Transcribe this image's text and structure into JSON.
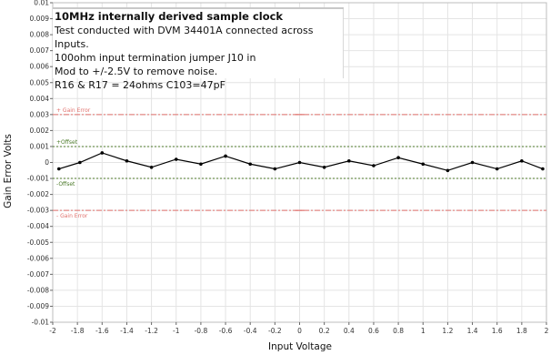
{
  "chart_data": {
    "type": "line",
    "xlabel": "Input Voltage",
    "ylabel": "Gain Error Volts",
    "xlim": [
      -2,
      2
    ],
    "ylim": [
      -0.01,
      0.01
    ],
    "x_ticks": [
      "-2",
      "-1.8",
      "-1.6",
      "-1.4",
      "-1.2",
      "-1",
      "-0.8",
      "-0.6",
      "-0.4",
      "-0.2",
      "0",
      "0.2",
      "0.4",
      "0.6",
      "0.8",
      "1",
      "1.2",
      "1.4",
      "1.6",
      "1.8",
      "2"
    ],
    "y_ticks": [
      "0.01",
      "0.009",
      "0.008",
      "0.007",
      "0.006",
      "0.005",
      "0.004",
      "0.003",
      "0.002",
      "0.001",
      "0",
      "-0.001",
      "-0.002",
      "-0.003",
      "-0.004",
      "-0.005",
      "-0.006",
      "-0.007",
      "-0.008",
      "-0.009",
      "-0.01"
    ],
    "grid": true,
    "series": [
      {
        "color": "#000000",
        "x": [
          -1.95,
          -1.78,
          -1.6,
          -1.4,
          -1.2,
          -1.0,
          -0.8,
          -0.6,
          -0.4,
          -0.2,
          0.0,
          0.2,
          0.4,
          0.6,
          0.8,
          1.0,
          1.2,
          1.4,
          1.6,
          1.8,
          1.97
        ],
        "y": [
          -0.0004,
          0.0,
          0.0006,
          0.0001,
          -0.0003,
          0.0002,
          -0.0001,
          0.0004,
          -0.0001,
          -0.0004,
          0.0,
          -0.0003,
          0.0001,
          -0.0002,
          0.0003,
          -0.0001,
          -0.0005,
          0.0,
          -0.0004,
          0.0001,
          -0.0004
        ]
      }
    ],
    "reference_lines": [
      {
        "label": "+ Gain Error",
        "y": 0.003,
        "color": "#e0706c"
      },
      {
        "label": "+Offset",
        "y": 0.001,
        "color": "#4c7a2a"
      },
      {
        "label": "-Offset",
        "y": -0.001,
        "color": "#4c7a2a"
      },
      {
        "label": "- Gain Error",
        "y": -0.003,
        "color": "#e0706c"
      }
    ]
  },
  "notes": {
    "title": "10MHz internally derived sample clock",
    "lines": [
      "Test conducted with DVM 34401A connected across",
      "Inputs.",
      "100ohm input termination jumper J10 in",
      "Mod to +/-2.5V to remove noise.",
      "R16 & R17 = 24ohms    C103=47pF"
    ]
  }
}
